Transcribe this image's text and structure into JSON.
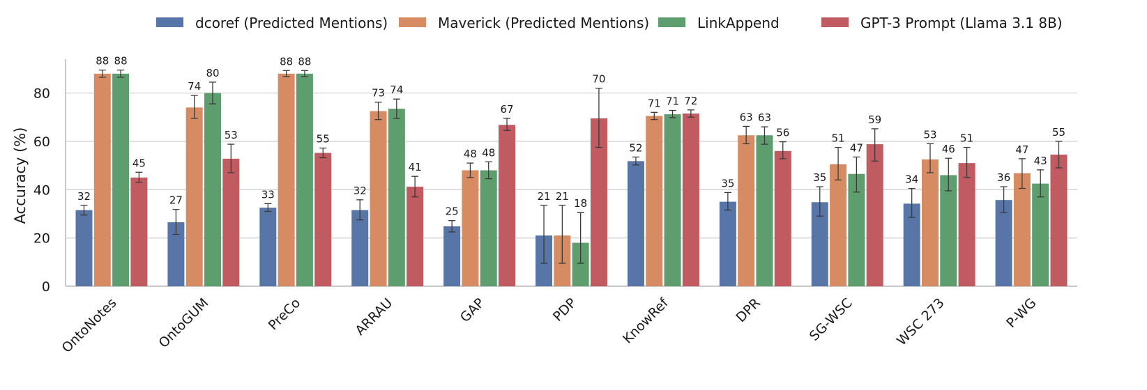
{
  "chart_data": {
    "type": "bar",
    "title": "",
    "xlabel": "",
    "ylabel": "Accuracy (%)",
    "ylim": [
      0,
      94
    ],
    "yticks": [
      0,
      20,
      40,
      60,
      80
    ],
    "grid": true,
    "legend_position": "top",
    "categories": [
      "OntoNotes",
      "OntoGUM",
      "PreCo",
      "ARRAU",
      "GAP",
      "PDP",
      "KnowRef",
      "DPR",
      "SG-WSC",
      "WSC 273",
      "P-WG"
    ],
    "series": [
      {
        "name": "dcoref (Predicted Mentions)",
        "color": "#5875a8",
        "values": [
          31.5,
          26.5,
          32.5,
          31.5,
          24.8,
          21,
          51.8,
          35,
          34.8,
          34.2,
          35.7
        ],
        "labels": [
          "32",
          "27",
          "33",
          "32",
          "25",
          "21",
          "52",
          "35",
          "35",
          "34",
          "36"
        ],
        "err_low": [
          29.5,
          21.5,
          31,
          27.5,
          22.5,
          9.5,
          50.2,
          31.5,
          29,
          28.5,
          30.5
        ],
        "err_high": [
          33.5,
          31.8,
          34.2,
          35.8,
          27.2,
          33.5,
          53.5,
          38.8,
          41.2,
          40.5,
          41.2
        ]
      },
      {
        "name": "Maverick (Predicted Mentions)",
        "color": "#d68b62",
        "values": [
          88,
          74,
          88,
          72.5,
          48,
          21,
          70.5,
          62.5,
          50.5,
          52.5,
          46.8
        ],
        "labels": [
          "88",
          "74",
          "88",
          "73",
          "48",
          "21",
          "71",
          "63",
          "51",
          "53",
          "47"
        ],
        "err_low": [
          86.5,
          69.5,
          86.8,
          69,
          45,
          9.5,
          69,
          59,
          44,
          47,
          40.5
        ],
        "err_high": [
          89.5,
          79,
          89.3,
          76.2,
          51,
          33.5,
          72,
          66.2,
          57.5,
          59,
          52.8
        ]
      },
      {
        "name": "LinkAppend",
        "color": "#5e9e6e",
        "values": [
          88,
          80,
          88,
          73.5,
          48,
          18,
          71.2,
          62.5,
          46.5,
          46,
          42.5
        ],
        "labels": [
          "88",
          "80",
          "88",
          "74",
          "48",
          "18",
          "71",
          "63",
          "47",
          "46",
          "43"
        ],
        "err_low": [
          86.5,
          75.5,
          86.8,
          69.5,
          44.5,
          9.5,
          69.8,
          58.8,
          39,
          39.5,
          37
        ],
        "err_high": [
          89.5,
          84.5,
          89.3,
          77.5,
          51.5,
          30.5,
          72.8,
          66,
          53.5,
          53,
          48.2
        ]
      },
      {
        "name": "GPT-3 Prompt (Llama 3.1 8B)",
        "color": "#bf5b61",
        "values": [
          45,
          52.8,
          55.2,
          41.2,
          66.8,
          69.5,
          71.5,
          56,
          58.8,
          51,
          54.5
        ],
        "labels": [
          "45",
          "53",
          "55",
          "41",
          "67",
          "70",
          "72",
          "56",
          "59",
          "51",
          "55"
        ],
        "err_low": [
          43,
          47,
          53.2,
          37,
          64.5,
          57.5,
          70,
          52.8,
          51.8,
          45,
          49
        ],
        "err_high": [
          47.2,
          58.8,
          57.2,
          45.5,
          69.5,
          82,
          73,
          59.8,
          65.2,
          57.5,
          60
        ]
      }
    ]
  }
}
